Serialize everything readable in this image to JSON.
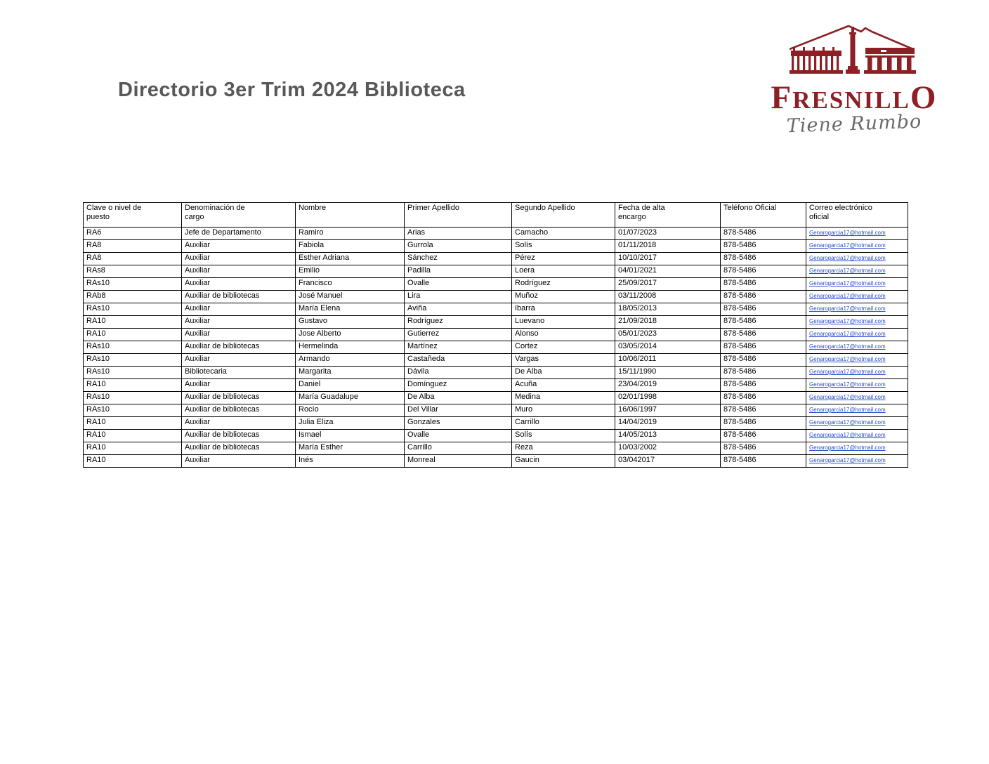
{
  "page": {
    "title": "Directorio 3er Trim 2024 Biblioteca"
  },
  "logo": {
    "wordmark_first": "F",
    "wordmark_mid": "RESNILL",
    "wordmark_last": "O",
    "tagline": "Tiene Rumbo",
    "maroon": "#8e1f24",
    "tagline_gray": "#6a6a6a"
  },
  "table": {
    "columns": [
      "Clave o nivel de puesto",
      "Denominación de cargo",
      "Nombre",
      "Primer Apellido",
      "Segundo Apellido",
      "Fecha de alta encargo",
      "Teléfono Oficial",
      "Correo electrónico oficial"
    ],
    "link_color": "#2a50c8",
    "rows": [
      [
        "RA6",
        "Jefe de Departamento",
        "Ramiro",
        "Arias",
        "Camacho",
        "01/07/2023",
        "878-5486",
        "Genarogarcia17@hotmail.com"
      ],
      [
        "RA8",
        "Auxiliar",
        "Fabiola",
        "Gurrola",
        "Solís",
        "01/11/2018",
        "878-5486",
        "Genarogarcia17@hotmail.com"
      ],
      [
        "RA8",
        "Auxiliar",
        "Esther Adriana",
        "Sánchez",
        "Pérez",
        "10/10/2017",
        "878-5486",
        "Genarogarcia17@hotmail.com"
      ],
      [
        "RAs8",
        "Auxiliar",
        "Emilio",
        "Padilla",
        "Loera",
        "04/01/2021",
        "878-5486",
        "Genarogarcia17@hotmail.com"
      ],
      [
        "RAs10",
        "Auxiliar",
        "Francisco",
        "Ovalle",
        "Rodríguez",
        "25/09/2017",
        "878-5486",
        "Genarogarcia17@hotmail.com"
      ],
      [
        "RAb8",
        "Auxiliar de bibliotecas",
        "José Manuel",
        "Lira",
        "Muñoz",
        "03/11/2008",
        "878-5486",
        "Genarogarcia17@hotmail.com"
      ],
      [
        "RAs10",
        "Auxiliar",
        "María Elena",
        "Aviña",
        "Ibarra",
        "18/05/2013",
        "878-5486",
        "Genarogarcia17@hotmail.com"
      ],
      [
        "RA10",
        "Auxiliar",
        "Gustavo",
        "Rodríguez",
        "Luevano",
        "21/09/2018",
        "878-5486",
        "Genarogarcia17@hotmail.com"
      ],
      [
        "RA10",
        "Auxiliar",
        "Jose Alberto",
        "Gutierrez",
        "Alonso",
        "05/01/2023",
        "878-5486",
        "Genarogarcia17@hotmail.com"
      ],
      [
        "RAs10",
        "Auxiliar de bibliotecas",
        "Hermelinda",
        "Martínez",
        "Cortez",
        "03/05/2014",
        "878-5486",
        "Genarogarcia17@hotmail.com"
      ],
      [
        "RAs10",
        "Auxiliar",
        "Armando",
        "Castañeda",
        "Vargas",
        "10/06/2011",
        "878-5486",
        "Genarogarcia17@hotmail.com"
      ],
      [
        "RAs10",
        "Bibliotecaria",
        "Margarita",
        "Dávila",
        "De Alba",
        "15/11/1990",
        "878-5486",
        "Genarogarcia17@hotmail.com"
      ],
      [
        "RA10",
        "Auxiliar",
        "Daniel",
        "Domínguez",
        "Acuña",
        "23/04/2019",
        "878-5486",
        "Genarogarcia17@hotmail.com"
      ],
      [
        "RAs10",
        "Auxiliar de bibliotecas",
        "María Guadalupe",
        "De Alba",
        "Medina",
        "02/01/1998",
        "878-5486",
        "Genarogarcia17@hotmail.com"
      ],
      [
        "RAs10",
        "Auxiliar de bibliotecas",
        "Rocío",
        "Del Villar",
        "Muro",
        "16/06/1997",
        "878-5486",
        "Genarogarcia17@hotmail.com"
      ],
      [
        "RA10",
        "Auxiliar",
        "Julia Eliza",
        "Gonzales",
        "Carrillo",
        "14/04/2019",
        "878-5486",
        "Genarogarcia17@hotmail.com"
      ],
      [
        "RA10",
        "Auxiliar de bibliotecas",
        "Ismael",
        "Ovalle",
        "Solís",
        "14/05/2013",
        "878-5486",
        "Genarogarcia17@hotmail.com"
      ],
      [
        "RA10",
        "Auxiliar de bibliotecas",
        "María Esther",
        "Carrillo",
        "Reza",
        "10/03/2002",
        "878-5486",
        "Genarogarcia17@hotmail.com"
      ],
      [
        "RA10",
        "Auxiliar",
        "Inés",
        "Monreal",
        "Gaucin",
        "03/042017",
        "878-5486",
        "Genarogarcia17@hotmail.com"
      ]
    ]
  }
}
